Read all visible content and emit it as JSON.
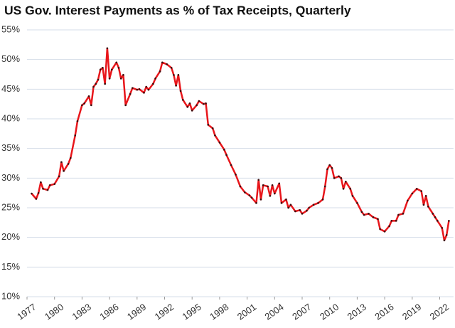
{
  "chart_data": {
    "type": "line",
    "title": "US Gov. Interest Payments as % of Tax Receipts, Quarterly",
    "x": [
      1977.5,
      1978.0,
      1978.25,
      1978.5,
      1978.75,
      1979.25,
      1979.5,
      1980.0,
      1980.5,
      1980.75,
      1981.0,
      1981.5,
      1981.75,
      1982.25,
      1982.5,
      1983.0,
      1983.25,
      1983.75,
      1984.0,
      1984.25,
      1984.5,
      1984.75,
      1985.0,
      1985.25,
      1985.5,
      1985.75,
      1986.0,
      1986.25,
      1986.75,
      1987.0,
      1987.25,
      1987.5,
      1987.75,
      1988.25,
      1988.5,
      1989.0,
      1989.25,
      1989.75,
      1990.0,
      1990.25,
      1990.75,
      1991.0,
      1991.5,
      1991.75,
      1992.25,
      1992.75,
      1993.0,
      1993.25,
      1993.5,
      1993.75,
      1994.0,
      1994.5,
      1994.75,
      1995.0,
      1995.5,
      1995.75,
      1996.25,
      1996.5,
      1996.75,
      1997.25,
      1997.5,
      1998.0,
      1998.5,
      1998.75,
      1999.25,
      1999.75,
      2000.25,
      2000.75,
      2001.25,
      2001.5,
      2002.0,
      2002.25,
      2002.5,
      2002.75,
      2003.25,
      2003.5,
      2003.75,
      2004.0,
      2004.5,
      2004.75,
      2005.25,
      2005.5,
      2005.75,
      2006.25,
      2006.75,
      2007.0,
      2007.5,
      2007.75,
      2008.25,
      2008.75,
      2009.25,
      2009.5,
      2009.75,
      2010.0,
      2010.25,
      2010.5,
      2011.0,
      2011.25,
      2011.5,
      2011.75,
      2012.25,
      2012.5,
      2013.0,
      2013.5,
      2013.75,
      2014.25,
      2014.75,
      2015.25,
      2015.5,
      2016.0,
      2016.5,
      2016.75,
      2017.25,
      2017.5,
      2018.0,
      2018.5,
      2019.0,
      2019.5,
      2020.0,
      2020.25,
      2020.5,
      2020.75,
      2021.25,
      2021.5,
      2021.75,
      2022.25,
      2022.5,
      2022.75,
      2023.0
    ],
    "series": [
      {
        "color": "#e8161b",
        "values": [
          27.4,
          26.5,
          27.5,
          29.3,
          28.2,
          28,
          28.8,
          29,
          30.3,
          32.7,
          31.2,
          32.4,
          33.4,
          37.2,
          39.6,
          42.3,
          42.6,
          43.8,
          42.3,
          45.4,
          45.9,
          46.6,
          48.3,
          48.6,
          45.9,
          51.9,
          46.8,
          48.3,
          49.5,
          48.6,
          46.8,
          47.4,
          42.3,
          44.2,
          45.2,
          44.9,
          45,
          44.4,
          45.4,
          44.9,
          45.9,
          46.8,
          48,
          49.5,
          49.2,
          48.6,
          47.4,
          45.6,
          47.4,
          44.7,
          43.2,
          42,
          42.6,
          41.4,
          42.3,
          43,
          42.5,
          42.6,
          39,
          38.4,
          37.2,
          36,
          34.8,
          33.9,
          32.2,
          30.6,
          28.6,
          27.6,
          27.1,
          26.7,
          25.8,
          29.7,
          26.4,
          28.8,
          28.6,
          27,
          28.8,
          27.4,
          29.1,
          25.8,
          26.4,
          25,
          25.5,
          24.4,
          24.6,
          24,
          24.5,
          25,
          25.5,
          25.8,
          26.4,
          28.6,
          31.5,
          32.2,
          31.7,
          30,
          30.3,
          30,
          28.2,
          29.4,
          28.2,
          27,
          25.8,
          24.3,
          23.8,
          24,
          23.4,
          23.1,
          21.4,
          21,
          21.9,
          22.8,
          22.8,
          23.8,
          24,
          26.2,
          27.4,
          28.2,
          27.8,
          25.5,
          27,
          25.2,
          24,
          23.4,
          22.8,
          21.6,
          19.5,
          20.4,
          22.8
        ]
      }
    ],
    "xlim": [
      1977,
      2023.5
    ],
    "xticks": [
      1977,
      1980,
      1983,
      1986,
      1989,
      1992,
      1995,
      1998,
      2001,
      2004,
      2007,
      2010,
      2013,
      2016,
      2019,
      2022
    ],
    "ylim": [
      10,
      55
    ],
    "yticks": [
      {
        "value": 10,
        "label": "10%"
      },
      {
        "value": 15,
        "label": "15%"
      },
      {
        "value": 20,
        "label": "20%"
      },
      {
        "value": 25,
        "label": "25%"
      },
      {
        "value": 30,
        "label": "30%"
      },
      {
        "value": 35,
        "label": "35%"
      },
      {
        "value": 40,
        "label": "40%"
      },
      {
        "value": 45,
        "label": "45%"
      },
      {
        "value": 50,
        "label": "50%"
      },
      {
        "value": 55,
        "label": "55%"
      }
    ],
    "grid": true
  }
}
